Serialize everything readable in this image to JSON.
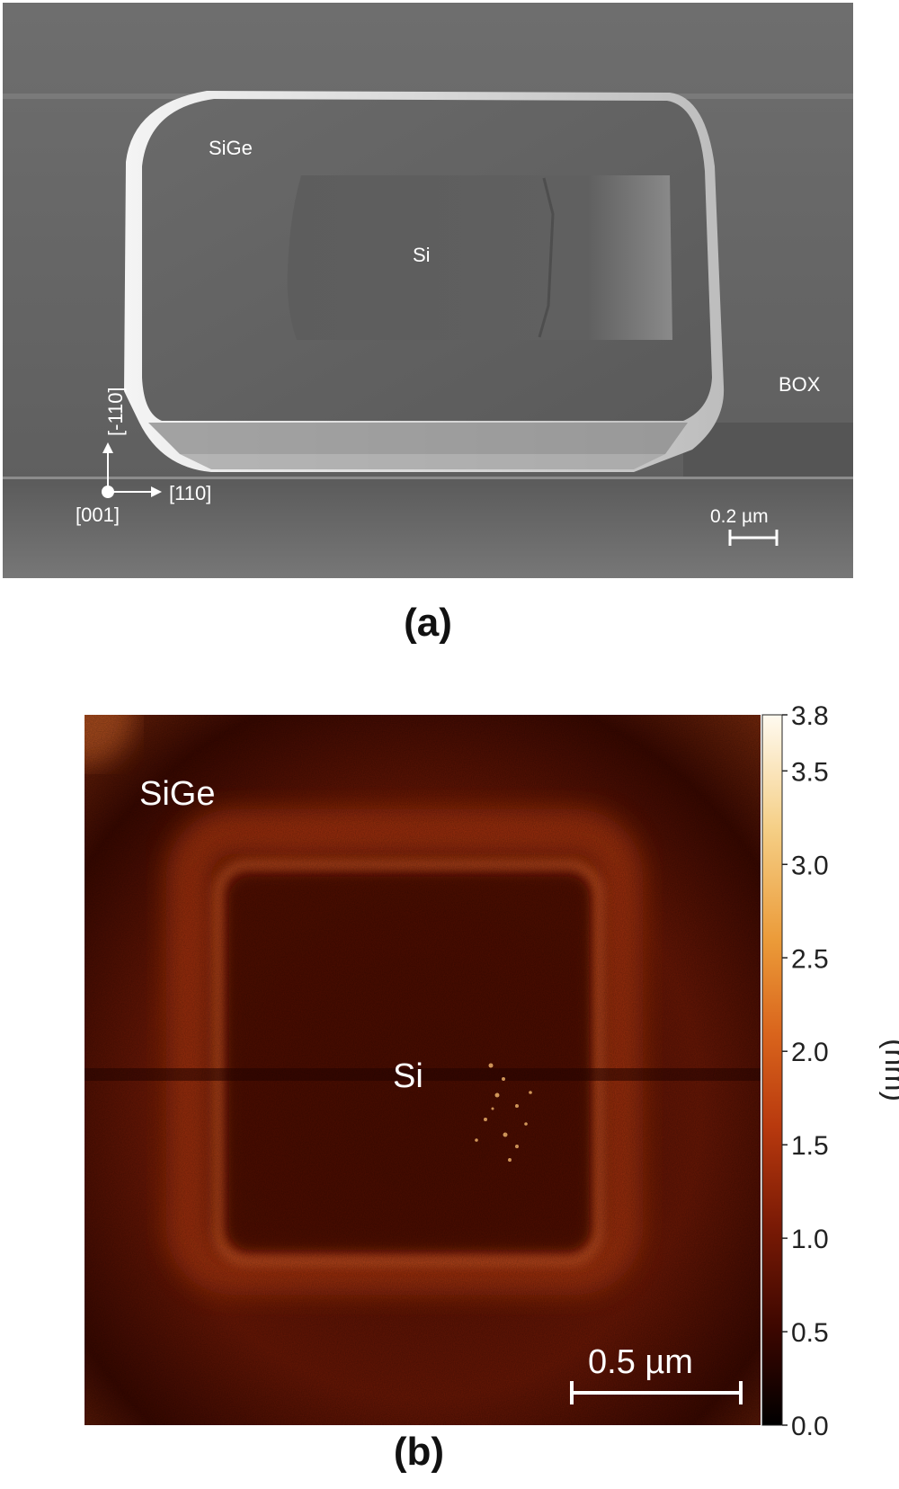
{
  "panel_a": {
    "caption": "(a)",
    "labels": {
      "sige": "SiGe",
      "si": "Si",
      "box": "BOX",
      "axis_vertical": "[-110]",
      "axis_horizontal": "[110]",
      "axis_origin": "[001]",
      "scale_bar": "0.2 µm"
    }
  },
  "panel_b": {
    "caption": "(b)",
    "labels": {
      "sige": "SiGe",
      "si": "Si",
      "scale_bar": "0.5 µm"
    },
    "colorbar": {
      "unit_label": "(nm)",
      "ticks": [
        "0.0",
        "0.5",
        "1.0",
        "1.5",
        "2.0",
        "2.5",
        "3.0",
        "3.5",
        "3.8"
      ],
      "colors": [
        "#000000",
        "#3a0600",
        "#7a1a05",
        "#b8390e",
        "#d9641c",
        "#eb9a38",
        "#f5cf86",
        "#fffaf0"
      ]
    }
  }
}
